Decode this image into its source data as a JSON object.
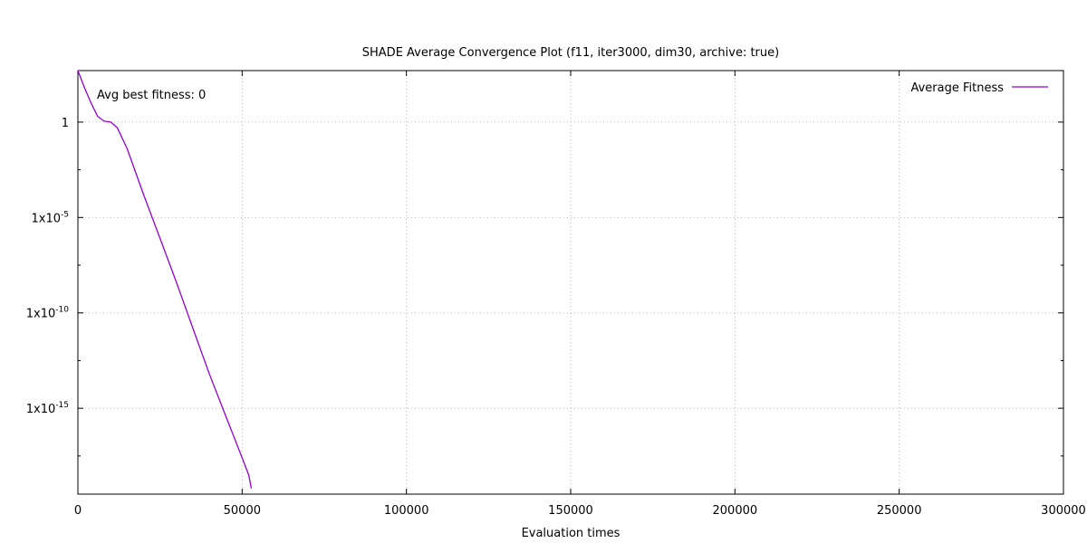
{
  "chart_data": {
    "type": "line",
    "title": "SHADE Average Convergence Plot (f11, iter3000, dim30, archive: true)",
    "xlabel": "Evaluation times",
    "ylabel": "",
    "y_scale": "log10",
    "xlim": [
      0,
      300000
    ],
    "ylim_log10": [
      -19.5,
      2.7
    ],
    "x_ticks": [
      0,
      50000,
      100000,
      150000,
      200000,
      250000,
      300000
    ],
    "x_tick_labels": [
      "0",
      "50000",
      "100000",
      "150000",
      "200000",
      "250000",
      "300000"
    ],
    "y_ticks": [
      {
        "log10": 0,
        "base": "1",
        "exp": ""
      },
      {
        "log10": -5,
        "base": "1x10",
        "exp": "-5"
      },
      {
        "log10": -10,
        "base": "1x10",
        "exp": "-10"
      },
      {
        "log10": -15,
        "base": "1x10",
        "exp": "-15"
      }
    ],
    "grid": true,
    "legend_position": "top-right",
    "annotation": "Avg best fitness: 0",
    "series": [
      {
        "name": "Average Fitness",
        "color": "#9400d3",
        "x": [
          0,
          2000,
          4000,
          6000,
          8000,
          10000,
          12000,
          15000,
          20000,
          25000,
          30000,
          35000,
          40000,
          45000,
          50000,
          52000,
          52800
        ],
        "log10_y": [
          2.7,
          1.8,
          1.0,
          0.3,
          0.05,
          0.0,
          -0.3,
          -1.4,
          -3.8,
          -6.1,
          -8.4,
          -10.8,
          -13.2,
          -15.4,
          -17.6,
          -18.5,
          -19.2
        ]
      }
    ]
  }
}
